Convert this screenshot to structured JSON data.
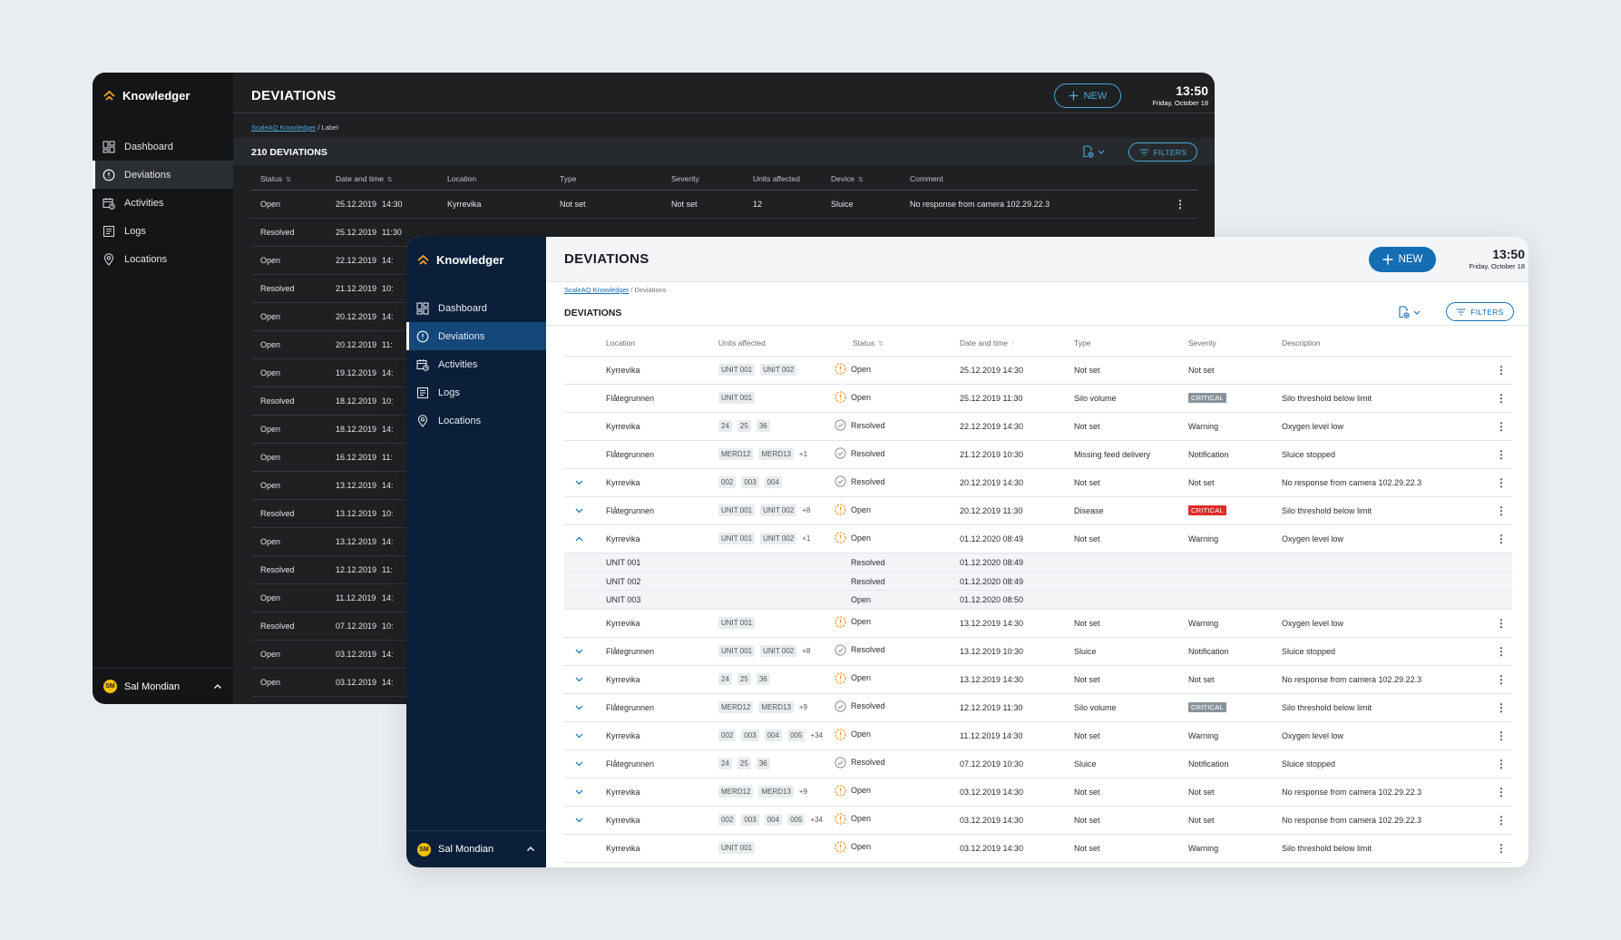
{
  "app": {
    "name": "Knowledger"
  },
  "nav": [
    "Dashboard",
    "Deviations",
    "Activities",
    "Logs",
    "Locations"
  ],
  "user": {
    "initials": "SM",
    "name": "Sal Mondian"
  },
  "clock": {
    "time": "13:50",
    "date": "Friday, October 18"
  },
  "colors": {
    "accent": "#146eb4",
    "dark_accent": "#4aa8d8",
    "critical": "#e02b2b",
    "warning_icon": "#f08a24",
    "logo": "#f5a623"
  },
  "dark": {
    "title": "DEVIATIONS",
    "new_label": "NEW",
    "crumb_link": "ScaleAQ Knowledger",
    "crumb_rest": " / Label",
    "count": "210 DEVIATIONS",
    "filters_label": "FILTERS",
    "columns": [
      "Status",
      "Date and time",
      "Location",
      "Type",
      "Severity",
      "Units affected",
      "Device",
      "Comment"
    ],
    "first_row": {
      "status": "Open",
      "date": "25.12.2019",
      "time": "14:30",
      "location": "Kyrrevika",
      "type": "Not set",
      "severity": "Not set",
      "units": "12",
      "device": "Sluice",
      "comment": "No response from camera 102.29.22.3"
    },
    "rows": [
      {
        "status": "Resolved",
        "date": "25.12.2019",
        "time": "11:30"
      },
      {
        "status": "Open",
        "date": "22.12.2019",
        "time": "14:"
      },
      {
        "status": "Resolved",
        "date": "21.12.2019",
        "time": "10:"
      },
      {
        "status": "Open",
        "date": "20.12.2019",
        "time": "14:"
      },
      {
        "status": "Open",
        "date": "20.12.2019",
        "time": "11:"
      },
      {
        "status": "Open",
        "date": "19.12.2019",
        "time": "14:"
      },
      {
        "status": "Resolved",
        "date": "18.12.2019",
        "time": "10:"
      },
      {
        "status": "Open",
        "date": "18.12.2019",
        "time": "14:"
      },
      {
        "status": "Open",
        "date": "16.12.2019",
        "time": "11:"
      },
      {
        "status": "Open",
        "date": "13.12.2019",
        "time": "14:"
      },
      {
        "status": "Resolved",
        "date": "13.12.2019",
        "time": "10:"
      },
      {
        "status": "Open",
        "date": "13.12.2019",
        "time": "14:"
      },
      {
        "status": "Resolved",
        "date": "12.12.2019",
        "time": "11:"
      },
      {
        "status": "Open",
        "date": "11.12.2019",
        "time": "14:"
      },
      {
        "status": "Resolved",
        "date": "07.12.2019",
        "time": "10:"
      },
      {
        "status": "Open",
        "date": "03.12.2019",
        "time": "14:"
      },
      {
        "status": "Open",
        "date": "03.12.2019",
        "time": "14:"
      }
    ]
  },
  "light": {
    "title": "DEVIATIONS",
    "new_label": "NEW",
    "crumb_link": "ScaleAQ Knowledger",
    "crumb_rest": " / Deviations",
    "subtitle": "DEVIATIONS",
    "filters_label": "FILTERS",
    "columns": [
      "Location",
      "Units affected",
      "Status",
      "Date and time",
      "Type",
      "Severity",
      "Description"
    ],
    "rows": [
      {
        "expand": "",
        "location": "Kyrrevika",
        "units": [
          "UNIT 001",
          "UNIT 002"
        ],
        "more": "",
        "status": "Open",
        "date": "25.12.2019 14:30",
        "type": "Not set",
        "severity": "Not set",
        "sev_style": "",
        "description": ""
      },
      {
        "expand": "",
        "location": "Flåtegrunnen",
        "units": [
          "UNIT 001"
        ],
        "more": "",
        "status": "Open",
        "date": "25.12.2019 11:30",
        "type": "Silo volume",
        "severity": "CRITICAL",
        "sev_style": "grey",
        "description": "Silo threshold below limit"
      },
      {
        "expand": "",
        "location": "Kyrrevika",
        "units": [
          "24",
          "25",
          "36"
        ],
        "more": "",
        "status": "Resolved",
        "date": "22.12.2019 14:30",
        "type": "Not set",
        "severity": "Warning",
        "sev_style": "",
        "description": "Oxygen level low"
      },
      {
        "expand": "",
        "location": "Flåtegrunnen",
        "units": [
          "MERD12",
          "MERD13"
        ],
        "more": "+1",
        "status": "Resolved",
        "date": "21.12.2019 10:30",
        "type": "Missing feed delivery",
        "severity": "Notification",
        "sev_style": "",
        "description": "Sluice stopped"
      },
      {
        "expand": "down",
        "location": "Kyrrevika",
        "units": [
          "002",
          "003",
          "004"
        ],
        "more": "",
        "status": "Resolved",
        "date": "20.12.2019 14:30",
        "type": "Not set",
        "severity": "Not set",
        "sev_style": "",
        "description": "No response from camera 102.29.22.3"
      },
      {
        "expand": "down",
        "location": "Flåtegrunnen",
        "units": [
          "UNIT 001",
          "UNIT 002"
        ],
        "more": "+8",
        "status": "Open",
        "date": "20.12.2019 11:30",
        "type": "Disease",
        "severity": "CRITICAL",
        "sev_style": "red",
        "description": "Silo threshold below limit"
      },
      {
        "expand": "up",
        "location": "Kyrrevika",
        "units": [
          "UNIT 001",
          "UNIT 002"
        ],
        "more": "+1",
        "status": "Open",
        "date": "01.12.2020 08:49",
        "type": "Not set",
        "severity": "Warning",
        "sev_style": "",
        "description": "Oxygen level low"
      }
    ],
    "subrows": [
      {
        "unit": "UNIT 001",
        "status": "Resolved",
        "date": "01.12.2020 08:49"
      },
      {
        "unit": "UNIT 002",
        "status": "Resolved",
        "date": "01.12.2020 08:49"
      },
      {
        "unit": "UNIT 003",
        "status": "Open",
        "date": "01.12.2020 08:50"
      }
    ],
    "rows2": [
      {
        "expand": "",
        "location": "Kyrrevika",
        "units": [
          "UNIT 001"
        ],
        "more": "",
        "status": "Open",
        "date": "13.12.2019 14:30",
        "type": "Not set",
        "severity": "Warning",
        "sev_style": "",
        "description": "Oxygen level low"
      },
      {
        "expand": "down",
        "location": "Flåtegrunnen",
        "units": [
          "UNIT 001",
          "UNIT 002"
        ],
        "more": "+8",
        "status": "Resolved",
        "date": "13.12.2019 10:30",
        "type": "Sluice",
        "severity": "Notification",
        "sev_style": "",
        "description": "Sluice stopped"
      },
      {
        "expand": "down",
        "location": "Kyrrevika",
        "units": [
          "24",
          "25",
          "36"
        ],
        "more": "",
        "status": "Open",
        "date": "13.12.2019 14:30",
        "type": "Not set",
        "severity": "Not set",
        "sev_style": "",
        "description": "No response from camera 102.29.22.3"
      },
      {
        "expand": "down",
        "location": "Flåtegrunnen",
        "units": [
          "MERD12",
          "MERD13"
        ],
        "more": "+9",
        "status": "Resolved",
        "date": "12.12.2019 11:30",
        "type": "Silo volume",
        "severity": "CRITICAL",
        "sev_style": "grey",
        "description": "Silo threshold below limit"
      },
      {
        "expand": "down",
        "location": "Kyrrevika",
        "units": [
          "002",
          "003",
          "004",
          "005"
        ],
        "more": "+34",
        "status": "Open",
        "date": "11.12.2019 14:30",
        "type": "Not set",
        "severity": "Warning",
        "sev_style": "",
        "description": "Oxygen level low"
      },
      {
        "expand": "down",
        "location": "Flåtegrunnen",
        "units": [
          "24",
          "25",
          "36"
        ],
        "more": "",
        "status": "Resolved",
        "date": "07.12.2019 10:30",
        "type": "Sluice",
        "severity": "Notification",
        "sev_style": "",
        "description": "Sluice stopped"
      },
      {
        "expand": "down",
        "location": "Kyrrevika",
        "units": [
          "MERD12",
          "MERD13"
        ],
        "more": "+9",
        "status": "Open",
        "date": "03.12.2019 14:30",
        "type": "Not set",
        "severity": "Not set",
        "sev_style": "",
        "description": "No response from camera 102.29.22.3"
      },
      {
        "expand": "down",
        "location": "Kyrrevika",
        "units": [
          "002",
          "003",
          "004",
          "005"
        ],
        "more": "+34",
        "status": "Open",
        "date": "03.12.2019 14:30",
        "type": "Not set",
        "severity": "Not set",
        "sev_style": "",
        "description": "No response from camera 102.29.22.3"
      },
      {
        "expand": "",
        "location": "Kyrrevika",
        "units": [
          "UNIT 001"
        ],
        "more": "",
        "status": "Open",
        "date": "03.12.2019 14:30",
        "type": "Not set",
        "severity": "Warning",
        "sev_style": "",
        "description": "Silo threshold below limit"
      }
    ]
  }
}
